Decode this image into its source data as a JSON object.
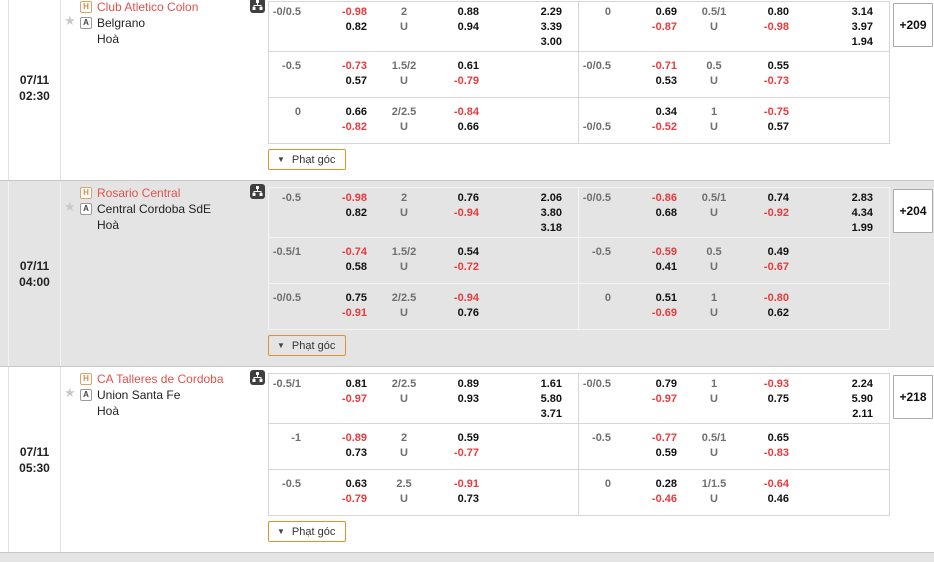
{
  "board": {
    "corner_label": "Phạt góc"
  },
  "matches": [
    {
      "date": "07/11",
      "time": "02:30",
      "home": "Club Atletico Colon",
      "home_badge": "H",
      "away": "Belgrano",
      "away_badge": "A",
      "draw": "Hoà",
      "more": "+209",
      "blocks": [
        {
          "rows": [
            {
              "hdp": [
                "-0/0.5",
                ""
              ],
              "o1": [
                "-0.98",
                "0.82"
              ],
              "line": [
                "2",
                "U"
              ],
              "o2": [
                "0.88",
                "0.94"
              ],
              "x12": [
                "2.29",
                "3.39",
                "3.00"
              ]
            },
            {
              "hdp": [
                "-0.5",
                ""
              ],
              "o1": [
                "-0.73",
                "0.57"
              ],
              "line": [
                "1.5/2",
                "U"
              ],
              "o2": [
                "0.61",
                "-0.79"
              ],
              "x12": []
            },
            {
              "hdp": [
                "0",
                ""
              ],
              "o1": [
                "0.66",
                "-0.82"
              ],
              "line": [
                "2/2.5",
                "U"
              ],
              "o2": [
                "-0.84",
                "0.66"
              ],
              "x12": []
            }
          ]
        },
        {
          "rows": [
            {
              "hdp": [
                "0",
                ""
              ],
              "o1": [
                "0.69",
                "-0.87"
              ],
              "line": [
                "0.5/1",
                "U"
              ],
              "o2": [
                "0.80",
                "-0.98"
              ],
              "x12": [
                "3.14",
                "3.97",
                "1.94"
              ]
            },
            {
              "hdp": [
                "-0/0.5",
                ""
              ],
              "o1": [
                "-0.71",
                "0.53"
              ],
              "line": [
                "0.5",
                "U"
              ],
              "o2": [
                "0.55",
                "-0.73"
              ],
              "x12": []
            },
            {
              "hdp": [
                "",
                "-0/0.5"
              ],
              "o1": [
                "0.34",
                "-0.52"
              ],
              "line": [
                "1",
                "U"
              ],
              "o2": [
                "-0.75",
                "0.57"
              ],
              "x12": []
            }
          ]
        }
      ]
    },
    {
      "date": "07/11",
      "time": "04:00",
      "home": "Rosario Central",
      "home_badge": "H",
      "away": "Central Cordoba SdE",
      "away_badge": "A",
      "draw": "Hoà",
      "more": "+204",
      "blocks": [
        {
          "rows": [
            {
              "hdp": [
                "-0.5",
                ""
              ],
              "o1": [
                "-0.98",
                "0.82"
              ],
              "line": [
                "2",
                "U"
              ],
              "o2": [
                "0.76",
                "-0.94"
              ],
              "x12": [
                "2.06",
                "3.80",
                "3.18"
              ]
            },
            {
              "hdp": [
                "-0.5/1",
                ""
              ],
              "o1": [
                "-0.74",
                "0.58"
              ],
              "line": [
                "1.5/2",
                "U"
              ],
              "o2": [
                "0.54",
                "-0.72"
              ],
              "x12": []
            },
            {
              "hdp": [
                "-0/0.5",
                ""
              ],
              "o1": [
                "0.75",
                "-0.91"
              ],
              "line": [
                "2/2.5",
                "U"
              ],
              "o2": [
                "-0.94",
                "0.76"
              ],
              "x12": []
            }
          ]
        },
        {
          "rows": [
            {
              "hdp": [
                "-0/0.5",
                ""
              ],
              "o1": [
                "-0.86",
                "0.68"
              ],
              "line": [
                "0.5/1",
                "U"
              ],
              "o2": [
                "0.74",
                "-0.92"
              ],
              "x12": [
                "2.83",
                "4.34",
                "1.99"
              ]
            },
            {
              "hdp": [
                "-0.5",
                ""
              ],
              "o1": [
                "-0.59",
                "0.41"
              ],
              "line": [
                "0.5",
                "U"
              ],
              "o2": [
                "0.49",
                "-0.67"
              ],
              "x12": []
            },
            {
              "hdp": [
                "0",
                ""
              ],
              "o1": [
                "0.51",
                "-0.69"
              ],
              "line": [
                "1",
                "U"
              ],
              "o2": [
                "-0.80",
                "0.62"
              ],
              "x12": []
            }
          ]
        }
      ]
    },
    {
      "date": "07/11",
      "time": "05:30",
      "home": "CA Talleres de Cordoba",
      "home_badge": "H",
      "away": "Union Santa Fe",
      "away_badge": "A",
      "draw": "Hoà",
      "more": "+218",
      "blocks": [
        {
          "rows": [
            {
              "hdp": [
                "-0.5/1",
                ""
              ],
              "o1": [
                "0.81",
                "-0.97"
              ],
              "line": [
                "2/2.5",
                "U"
              ],
              "o2": [
                "0.89",
                "0.93"
              ],
              "x12": [
                "1.61",
                "5.80",
                "3.71"
              ]
            },
            {
              "hdp": [
                "-1",
                ""
              ],
              "o1": [
                "-0.89",
                "0.73"
              ],
              "line": [
                "2",
                "U"
              ],
              "o2": [
                "0.59",
                "-0.77"
              ],
              "x12": []
            },
            {
              "hdp": [
                "-0.5",
                ""
              ],
              "o1": [
                "0.63",
                "-0.79"
              ],
              "line": [
                "2.5",
                "U"
              ],
              "o2": [
                "-0.91",
                "0.73"
              ],
              "x12": []
            }
          ]
        },
        {
          "rows": [
            {
              "hdp": [
                "-0/0.5",
                ""
              ],
              "o1": [
                "0.79",
                "-0.97"
              ],
              "line": [
                "1",
                "U"
              ],
              "o2": [
                "-0.93",
                "0.75"
              ],
              "x12": [
                "2.24",
                "5.90",
                "2.11"
              ]
            },
            {
              "hdp": [
                "-0.5",
                ""
              ],
              "o1": [
                "-0.77",
                "0.59"
              ],
              "line": [
                "0.5/1",
                "U"
              ],
              "o2": [
                "0.65",
                "-0.83"
              ],
              "x12": []
            },
            {
              "hdp": [
                "0",
                ""
              ],
              "o1": [
                "0.28",
                "-0.46"
              ],
              "line": [
                "1/1.5",
                "U"
              ],
              "o2": [
                "-0.64",
                "0.46"
              ],
              "x12": []
            }
          ]
        }
      ]
    }
  ]
}
